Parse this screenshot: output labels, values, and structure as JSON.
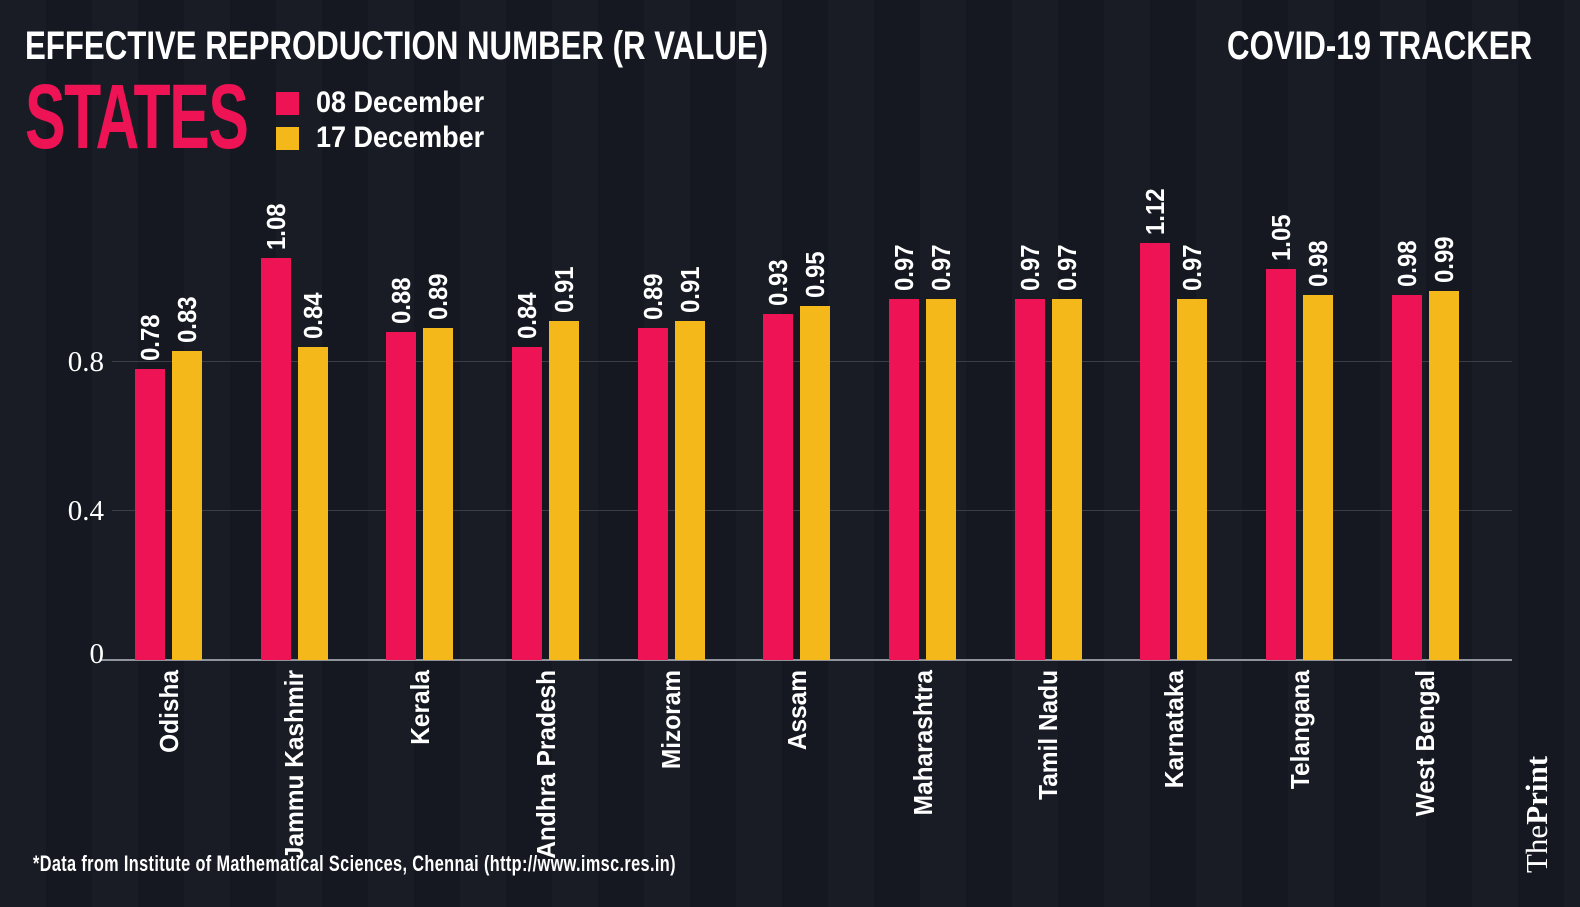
{
  "header": {
    "title": "EFFECTIVE REPRODUCTION NUMBER (R VALUE)",
    "tracker": "COVID-19 TRACKER",
    "section": "STATES"
  },
  "legend": [
    {
      "label": "08 December",
      "color": "#ee1355"
    },
    {
      "label": "17 December",
      "color": "#f4b81a"
    }
  ],
  "colors": {
    "pink": "#ee1355",
    "yellow": "#f4b81a",
    "background": "#151821",
    "text": "#ffffff",
    "gridline": "#3b3e47",
    "axis_line": "#8f939b"
  },
  "chart_data": {
    "type": "bar",
    "orientation": "vertical",
    "title": "EFFECTIVE REPRODUCTION NUMBER (R VALUE)",
    "xlabel": "",
    "ylabel": "",
    "categories": [
      "Odisha",
      "Jammu Kashmir",
      "Kerala",
      "Andhra Pradesh",
      "Mizoram",
      "Assam",
      "Maharashtra",
      "Tamil Nadu",
      "Karnataka",
      "Telangana",
      "West Bengal"
    ],
    "series": [
      {
        "name": "08 December",
        "color": "#ee1355",
        "values": [
          0.78,
          1.08,
          0.88,
          0.84,
          0.89,
          0.93,
          0.97,
          0.97,
          1.12,
          1.05,
          0.98
        ]
      },
      {
        "name": "17 December",
        "color": "#f4b81a",
        "values": [
          0.83,
          0.84,
          0.89,
          0.91,
          0.91,
          0.95,
          0.97,
          0.97,
          0.97,
          0.98,
          0.99
        ]
      }
    ],
    "yticks": [
      0,
      0.4,
      0.8
    ],
    "ylim": [
      0,
      1.2
    ],
    "grid": "horizontal",
    "value_labels": true,
    "label_rotation": 90,
    "legend_position": "top-left"
  },
  "footer": {
    "source": "*Data from Institute of Mathematical Sciences, Chennai (http://www.imsc.res.in)"
  },
  "branding": {
    "the": "The",
    "print": "Print"
  }
}
